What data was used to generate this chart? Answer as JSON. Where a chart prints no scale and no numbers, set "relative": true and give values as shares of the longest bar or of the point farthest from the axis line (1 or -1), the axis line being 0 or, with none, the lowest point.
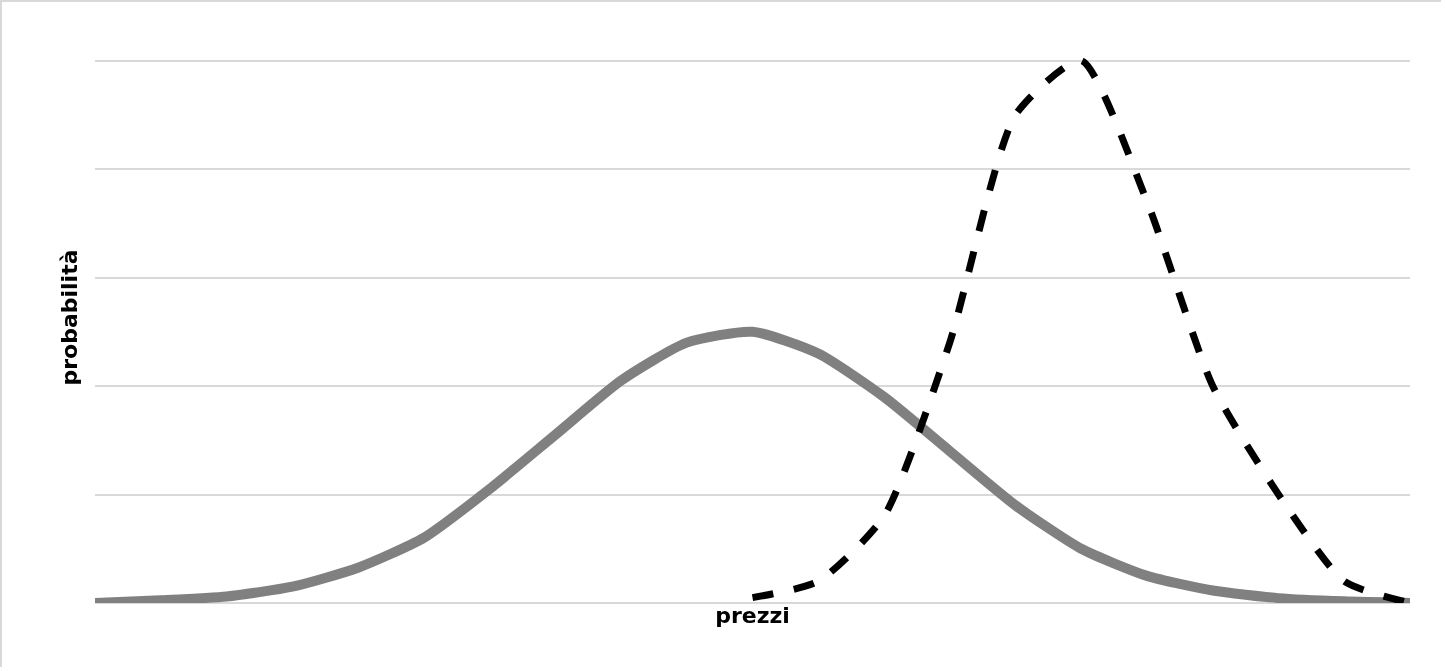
{
  "chart_data": {
    "type": "line",
    "relative": true,
    "xlabel": "prezzi",
    "ylabel": "probabilità",
    "grid": "y",
    "categories": [
      null,
      null,
      null,
      null,
      null,
      null,
      null,
      null,
      null,
      null,
      null,
      null,
      null,
      null,
      null,
      null,
      null,
      null,
      null,
      null,
      null
    ],
    "series": [
      {
        "color": "#808080",
        "line_style": "solid",
        "values": [
          0,
          0.005,
          0.012,
          0.03,
          0.065,
          0.12,
          0.21,
          0.31,
          0.41,
          0.48,
          0.5,
          0.46,
          0.38,
          0.28,
          0.18,
          0.1,
          0.05,
          0.023,
          0.009,
          0.003,
          0
        ]
      },
      {
        "color": "#000000",
        "line_style": "dashed",
        "values": [
          null,
          null,
          null,
          null,
          null,
          null,
          null,
          null,
          null,
          null,
          0.01,
          0.04,
          0.16,
          0.48,
          0.9,
          1,
          0.74,
          0.4,
          0.2,
          0.04,
          0
        ]
      }
    ]
  }
}
